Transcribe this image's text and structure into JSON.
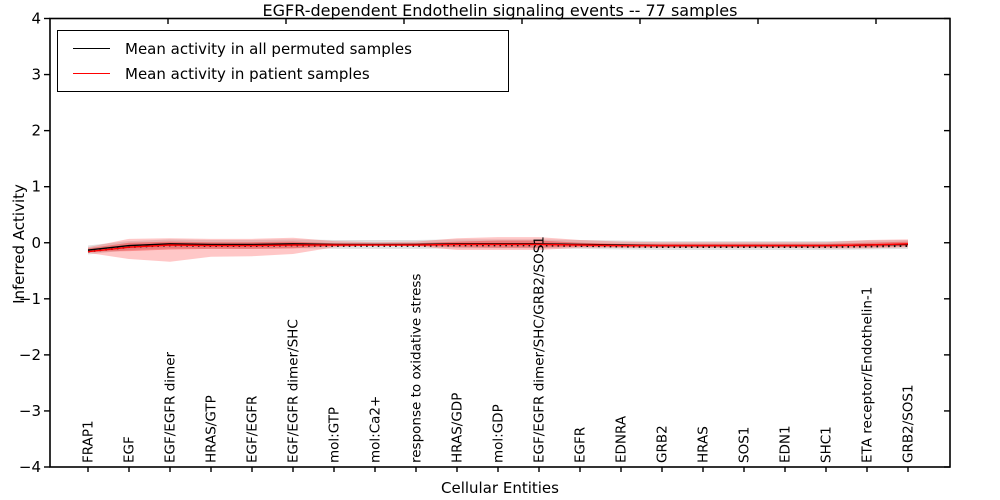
{
  "figure": {
    "title": "EGFR-dependent Endothelin signaling events -- 77 samples",
    "xlabel": "Cellular Entities",
    "ylabel": "Inferred Activity"
  },
  "legend": {
    "entries": [
      {
        "label": "Mean activity in all permuted samples",
        "color": "#000000"
      },
      {
        "label": "Mean activity in patient samples",
        "color": "#ff0000"
      }
    ]
  },
  "chart_data": {
    "type": "line",
    "title": "EGFR-dependent Endothelin signaling events -- 77 samples",
    "xlabel": "Cellular Entities",
    "ylabel": "Inferred Activity",
    "ylim": [
      -4,
      4
    ],
    "grid": false,
    "legend_position": "upper left",
    "yticks": [
      4,
      3,
      2,
      1,
      0,
      -1,
      -2,
      -3,
      -4
    ],
    "ytick_labels": [
      "4",
      "3",
      "2",
      "1",
      "0",
      "−1",
      "−2",
      "−3",
      "−4"
    ],
    "categories": [
      "FRAP1",
      "EGF",
      "EGF/EGFR dimer",
      "HRAS/GTP",
      "EGF/EGFR",
      "EGF/EGFR dimer/SHC",
      "mol:GTP",
      "mol:Ca2+",
      "response to oxidative stress",
      "HRAS/GDP",
      "mol:GDP",
      "EGF/EGFR dimer/SHC/GRB2/SOS1",
      "EGFR",
      "EDNRA",
      "GRB2",
      "HRAS",
      "SOS1",
      "EDN1",
      "SHC1",
      "ETA receptor/Endothelin-1",
      "GRB2/SOS1"
    ],
    "series": [
      {
        "name": "Mean activity in all permuted samples",
        "color": "#000000",
        "dashed_overlay": true,
        "values": [
          -0.13,
          -0.05,
          -0.02,
          -0.03,
          -0.03,
          -0.02,
          -0.03,
          -0.03,
          -0.03,
          -0.02,
          -0.02,
          -0.02,
          -0.03,
          -0.04,
          -0.05,
          -0.05,
          -0.05,
          -0.05,
          -0.05,
          -0.04,
          -0.03
        ]
      },
      {
        "name": "Mean activity in patient samples",
        "color": "#ff0000",
        "dashed_overlay": false,
        "values": [
          -0.16,
          -0.08,
          -0.04,
          -0.05,
          -0.05,
          -0.04,
          -0.04,
          -0.04,
          -0.04,
          -0.03,
          -0.03,
          -0.03,
          -0.04,
          -0.05,
          -0.05,
          -0.05,
          -0.05,
          -0.05,
          -0.05,
          -0.04,
          -0.02
        ]
      }
    ],
    "bands": [
      {
        "name": "permuted-samples-std",
        "color": "#999999",
        "opacity": 0.3,
        "top": [
          -0.05,
          0.03,
          0.06,
          0.05,
          0.05,
          0.06,
          0.05,
          0.05,
          0.05,
          0.06,
          0.06,
          0.06,
          0.05,
          0.04,
          0.03,
          0.03,
          0.03,
          0.03,
          0.03,
          0.04,
          0.05
        ],
        "bottom": [
          -0.21,
          -0.13,
          -0.1,
          -0.11,
          -0.11,
          -0.1,
          -0.11,
          -0.11,
          -0.11,
          -0.1,
          -0.1,
          -0.1,
          -0.11,
          -0.12,
          -0.13,
          -0.13,
          -0.13,
          -0.13,
          -0.13,
          -0.12,
          -0.11
        ]
      },
      {
        "name": "patient-samples-outer",
        "color": "#ff4444",
        "opacity": 0.3,
        "top": [
          -0.08,
          0.07,
          0.08,
          0.07,
          0.07,
          0.09,
          0.03,
          0.01,
          0.02,
          0.08,
          0.1,
          0.1,
          0.05,
          0.02,
          0.01,
          0.01,
          0.01,
          0.01,
          0.01,
          0.05,
          0.06
        ],
        "bottom": [
          -0.18,
          -0.29,
          -0.34,
          -0.25,
          -0.24,
          -0.2,
          -0.08,
          -0.05,
          -0.06,
          -0.13,
          -0.13,
          -0.13,
          -0.09,
          -0.09,
          -0.09,
          -0.09,
          -0.09,
          -0.09,
          -0.1,
          -0.1,
          -0.08
        ]
      },
      {
        "name": "patient-samples-inner",
        "color": "#ee2222",
        "opacity": 0.38,
        "top": [
          -0.1,
          0.0,
          0.02,
          0.01,
          0.01,
          0.02,
          -0.01,
          -0.02,
          -0.01,
          0.02,
          0.04,
          0.04,
          0.0,
          -0.02,
          -0.02,
          -0.02,
          -0.02,
          -0.02,
          -0.02,
          0.0,
          0.02
        ],
        "bottom": [
          -0.16,
          -0.15,
          -0.12,
          -0.11,
          -0.11,
          -0.1,
          -0.06,
          -0.05,
          -0.05,
          -0.08,
          -0.09,
          -0.09,
          -0.07,
          -0.08,
          -0.08,
          -0.08,
          -0.08,
          -0.08,
          -0.08,
          -0.08,
          -0.06
        ]
      }
    ]
  }
}
